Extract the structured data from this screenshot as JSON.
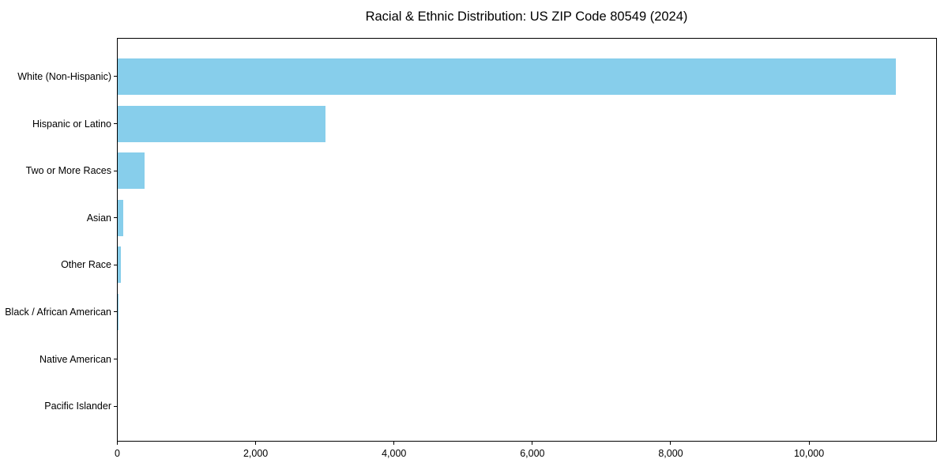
{
  "chart_data": {
    "type": "bar",
    "orientation": "horizontal",
    "title": "Racial & Ethnic Distribution: US ZIP Code 80549 (2024)",
    "categories": [
      "White (Non-Hispanic)",
      "Hispanic or Latino",
      "Two or More Races",
      "Asian",
      "Other Race",
      "Black / African American",
      "Native American",
      "Pacific Islander"
    ],
    "values": [
      11260,
      3010,
      390,
      90,
      50,
      12,
      0,
      0
    ],
    "xlabel": "",
    "ylabel": "",
    "xlim": [
      0,
      11832
    ],
    "x_ticks": [
      0,
      2000,
      4000,
      6000,
      8000,
      10000
    ],
    "x_tick_labels": [
      "0",
      "2,000",
      "4,000",
      "6,000",
      "8,000",
      "10,000"
    ],
    "bar_color": "#87CEEB",
    "spine_color": "#000000",
    "text_color": "#000000",
    "grid": false,
    "legend_position": "none"
  }
}
